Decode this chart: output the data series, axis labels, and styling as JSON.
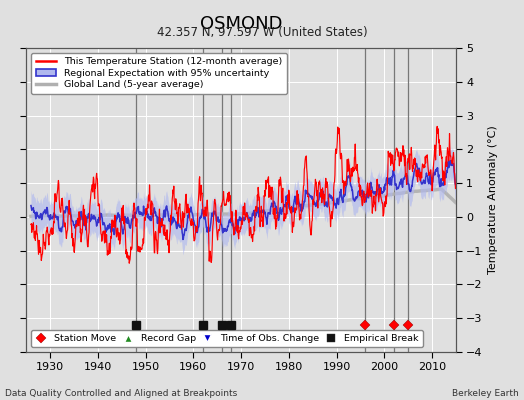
{
  "title": "OSMOND",
  "subtitle": "42.357 N, 97.597 W (United States)",
  "ylabel": "Temperature Anomaly (°C)",
  "xlabel_bottom": "Data Quality Controlled and Aligned at Breakpoints",
  "xlabel_right": "Berkeley Earth",
  "ylim": [
    -4,
    5
  ],
  "xlim": [
    1925,
    2015
  ],
  "xticks": [
    1930,
    1940,
    1950,
    1960,
    1970,
    1980,
    1990,
    2000,
    2010
  ],
  "yticks": [
    -4,
    -3,
    -2,
    -1,
    0,
    1,
    2,
    3,
    4,
    5
  ],
  "bg_color": "#e0e0e0",
  "plot_bg_color": "#e0e0e0",
  "grid_color": "#ffffff",
  "station_color": "#ff0000",
  "regional_color": "#3333cc",
  "regional_fill_color": "#b0b8ee",
  "global_color": "#b0b0b0",
  "event_markers": {
    "station_move": {
      "years": [
        1996,
        2002,
        2005
      ],
      "color": "#ff0000",
      "marker": "D",
      "label": "Station Move"
    },
    "record_gap": {
      "years": [],
      "color": "#228B22",
      "marker": "^",
      "label": "Record Gap"
    },
    "time_obs_change": {
      "years": [],
      "color": "#0000cc",
      "marker": "v",
      "label": "Time of Obs. Change"
    },
    "empirical_break": {
      "years": [
        1948,
        1962,
        1966,
        1968
      ],
      "color": "#111111",
      "marker": "s",
      "label": "Empirical Break"
    }
  },
  "vertical_lines": [
    1948,
    1962,
    1966,
    1968,
    1996,
    2002,
    2005
  ],
  "vertical_line_color": "#777777",
  "legend_labels": [
    "This Temperature Station (12-month average)",
    "Regional Expectation with 95% uncertainty",
    "Global Land (5-year average)"
  ]
}
